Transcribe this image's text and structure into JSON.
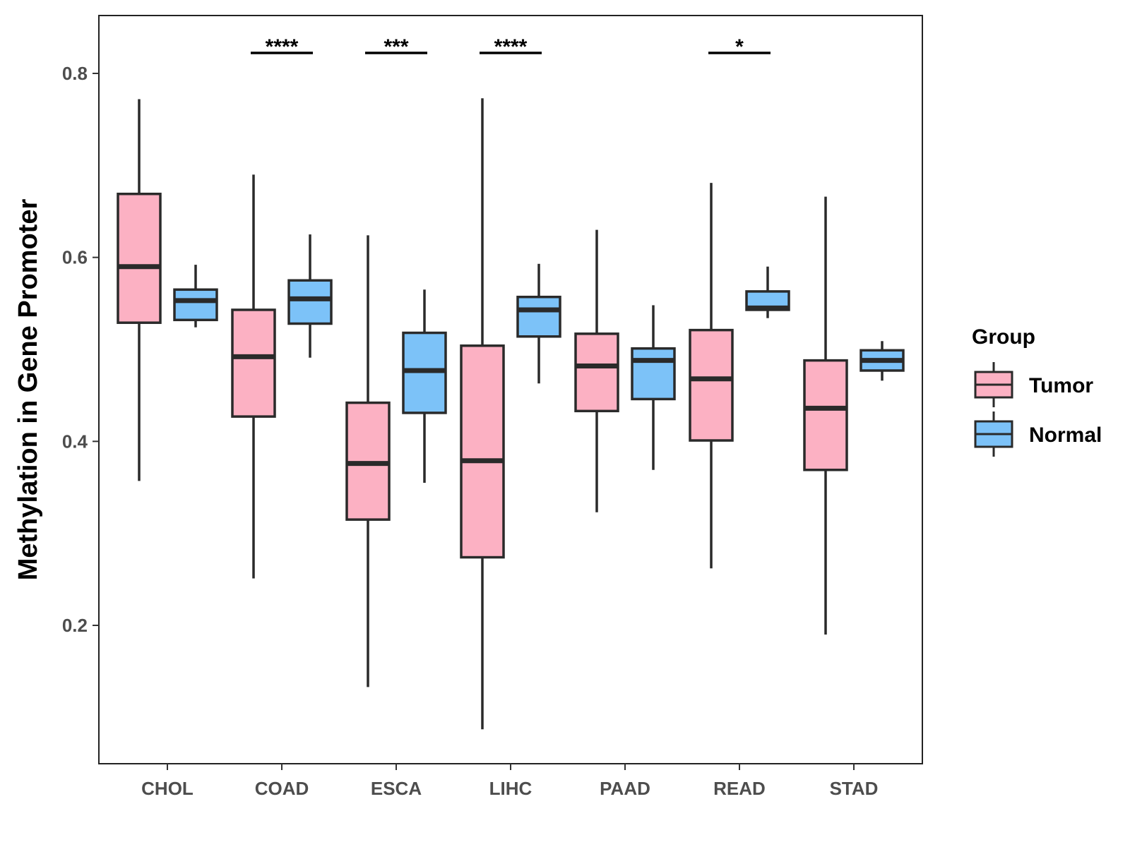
{
  "chart_data": {
    "type": "boxplot",
    "ylabel": "Methylation in Gene Promoter",
    "xlabel": "",
    "ylim": [
      0.05,
      0.86
    ],
    "y_ticks": [
      0.2,
      0.4,
      0.6,
      0.8
    ],
    "y_tick_labels": [
      "0.2",
      "0.4",
      "0.6",
      "0.8"
    ],
    "categories": [
      "CHOL",
      "COAD",
      "ESCA",
      "LIHC",
      "PAAD",
      "READ",
      "STAD"
    ],
    "legend": {
      "title": "Group",
      "position": "right",
      "entries": [
        {
          "name": "Tumor",
          "color": "#FCB1C3"
        },
        {
          "name": "Normal",
          "color": "#7CC2F8"
        }
      ]
    },
    "series": [
      {
        "name": "Tumor",
        "color": "#FCB1C3",
        "boxes": [
          {
            "category": "CHOL",
            "min": 0.357,
            "q1": 0.529,
            "median": 0.59,
            "q3": 0.669,
            "max": 0.772
          },
          {
            "category": "COAD",
            "min": 0.251,
            "q1": 0.427,
            "median": 0.492,
            "q3": 0.543,
            "max": 0.69
          },
          {
            "category": "ESCA",
            "min": 0.133,
            "q1": 0.315,
            "median": 0.376,
            "q3": 0.442,
            "max": 0.624
          },
          {
            "category": "LIHC",
            "min": 0.087,
            "q1": 0.274,
            "median": 0.379,
            "q3": 0.504,
            "max": 0.773
          },
          {
            "category": "PAAD",
            "min": 0.323,
            "q1": 0.433,
            "median": 0.482,
            "q3": 0.517,
            "max": 0.63
          },
          {
            "category": "READ",
            "min": 0.262,
            "q1": 0.401,
            "median": 0.468,
            "q3": 0.521,
            "max": 0.681
          },
          {
            "category": "STAD",
            "min": 0.19,
            "q1": 0.369,
            "median": 0.436,
            "q3": 0.488,
            "max": 0.666
          }
        ]
      },
      {
        "name": "Normal",
        "color": "#7CC2F8",
        "boxes": [
          {
            "category": "CHOL",
            "min": 0.524,
            "q1": 0.532,
            "median": 0.553,
            "q3": 0.565,
            "max": 0.592
          },
          {
            "category": "COAD",
            "min": 0.491,
            "q1": 0.528,
            "median": 0.555,
            "q3": 0.575,
            "max": 0.625
          },
          {
            "category": "ESCA",
            "min": 0.355,
            "q1": 0.431,
            "median": 0.477,
            "q3": 0.518,
            "max": 0.565
          },
          {
            "category": "LIHC",
            "min": 0.463,
            "q1": 0.514,
            "median": 0.543,
            "q3": 0.557,
            "max": 0.593
          },
          {
            "category": "PAAD",
            "min": 0.369,
            "q1": 0.446,
            "median": 0.488,
            "q3": 0.501,
            "max": 0.548
          },
          {
            "category": "READ",
            "min": 0.534,
            "q1": 0.543,
            "median": 0.545,
            "q3": 0.563,
            "max": 0.59
          },
          {
            "category": "STAD",
            "min": 0.466,
            "q1": 0.477,
            "median": 0.488,
            "q3": 0.499,
            "max": 0.509
          }
        ]
      }
    ],
    "significance": [
      {
        "category": "COAD",
        "label": "****"
      },
      {
        "category": "ESCA",
        "label": "***"
      },
      {
        "category": "LIHC",
        "label": "****"
      },
      {
        "category": "READ",
        "label": "*"
      }
    ]
  }
}
